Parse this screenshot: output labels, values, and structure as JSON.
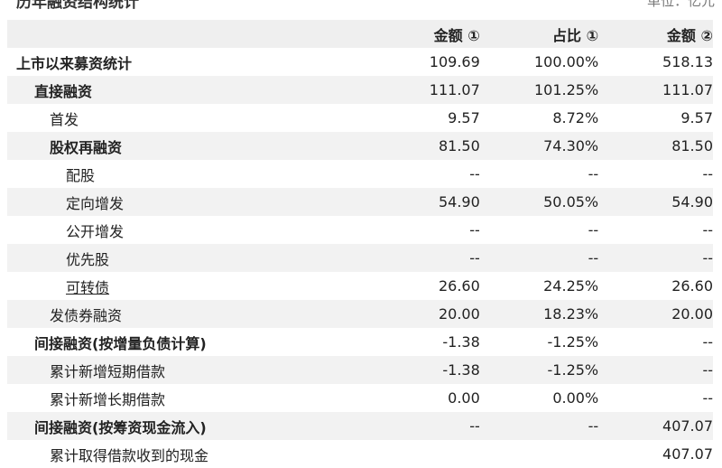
{
  "title": "历年融资结构统计",
  "unit": "单位：亿元",
  "headers": [
    "",
    "金额 ①",
    "占比 ①",
    "金额 ②"
  ],
  "rows": [
    {
      "label": "上市以来募资统计",
      "v": [
        "109.69",
        "100.00%",
        "518.13"
      ],
      "level": 0,
      "bold": true
    },
    {
      "label": "直接融资",
      "v": [
        "111.07",
        "101.25%",
        "111.07"
      ],
      "level": 1,
      "bold": true
    },
    {
      "label": "首发",
      "v": [
        "9.57",
        "8.72%",
        "9.57"
      ],
      "level": 2,
      "bold": false
    },
    {
      "label": "股权再融资",
      "v": [
        "81.50",
        "74.30%",
        "81.50"
      ],
      "level": 2,
      "bold": true
    },
    {
      "label": "配股",
      "v": [
        "--",
        "--",
        "--"
      ],
      "level": 3,
      "bold": false
    },
    {
      "label": "定向增发",
      "v": [
        "54.90",
        "50.05%",
        "54.90"
      ],
      "level": 3,
      "bold": false
    },
    {
      "label": "公开增发",
      "v": [
        "--",
        "--",
        "--"
      ],
      "level": 3,
      "bold": false
    },
    {
      "label": "优先股",
      "v": [
        "--",
        "--",
        "--"
      ],
      "level": 3,
      "bold": false
    },
    {
      "label": "可转债",
      "v": [
        "26.60",
        "24.25%",
        "26.60"
      ],
      "level": 3,
      "bold": false,
      "link": true
    },
    {
      "label": "发债券融资",
      "v": [
        "20.00",
        "18.23%",
        "20.00"
      ],
      "level": 2,
      "bold": false
    },
    {
      "label": "间接融资(按增量负债计算)",
      "v": [
        "-1.38",
        "-1.25%",
        "--"
      ],
      "level": 1,
      "bold": true
    },
    {
      "label": "累计新增短期借款",
      "v": [
        "-1.38",
        "-1.25%",
        "--"
      ],
      "level": 2,
      "bold": false
    },
    {
      "label": "累计新增长期借款",
      "v": [
        "0.00",
        "0.00%",
        "--"
      ],
      "level": 2,
      "bold": false
    },
    {
      "label": "间接融资(按筹资现金流入)",
      "v": [
        "--",
        "--",
        "407.07"
      ],
      "level": 1,
      "bold": true
    },
    {
      "label": "累计取得借款收到的现金",
      "v": [
        "",
        "",
        "407.07"
      ],
      "level": 2,
      "bold": false
    }
  ]
}
